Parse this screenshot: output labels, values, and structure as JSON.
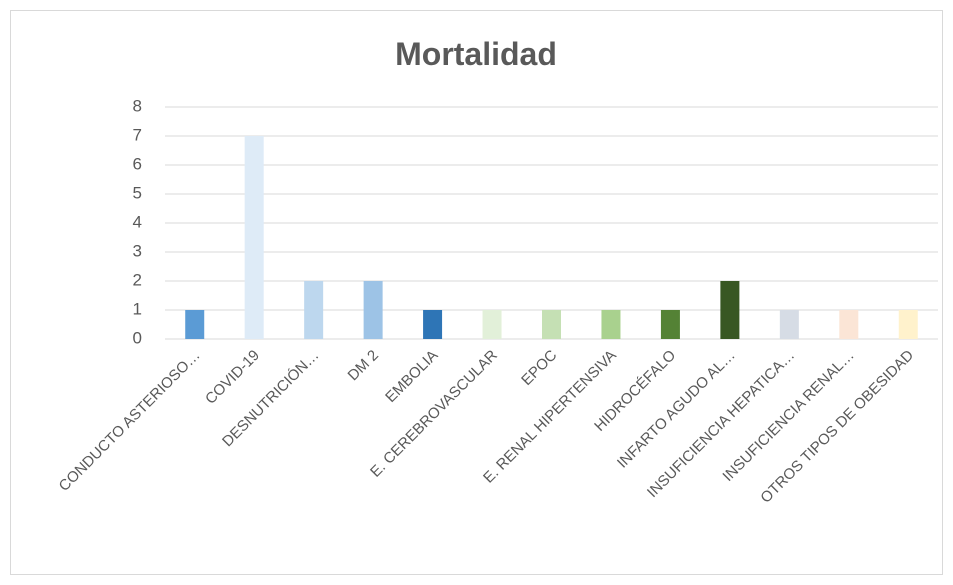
{
  "chart_data": {
    "type": "bar",
    "title": "Mortalidad",
    "categories": [
      "CONDUCTO ASTERIOSO…",
      "COVID-19",
      "DESNUTRICIÓN…",
      "DM 2",
      "EMBOLIA",
      "E. CEREBROVASCULAR",
      "EPOC",
      "E. RENAL HIPERTENSIVA",
      "HIDROCÉFALO",
      "INFARTO AGUDO AL…",
      "INSUFICIENCIA HEPATICA…",
      "INSUFICIENCIA RENAL…",
      "OTROS TIPOS DE OBESIDAD"
    ],
    "values": [
      1,
      7,
      2,
      2,
      1,
      1,
      1,
      1,
      1,
      2,
      1,
      1,
      1
    ],
    "colors": [
      "#5b9bd5",
      "#deebf7",
      "#bdd7ee",
      "#9dc3e6",
      "#2e75b6",
      "#e2f0d9",
      "#c5e0b4",
      "#a9d18e",
      "#548235",
      "#385723",
      "#d6dce5",
      "#fbe5d6",
      "#fff2cc"
    ],
    "ylim": [
      0,
      8
    ],
    "yticks": [
      0,
      1,
      2,
      3,
      4,
      5,
      6,
      7,
      8
    ],
    "grid": true
  }
}
